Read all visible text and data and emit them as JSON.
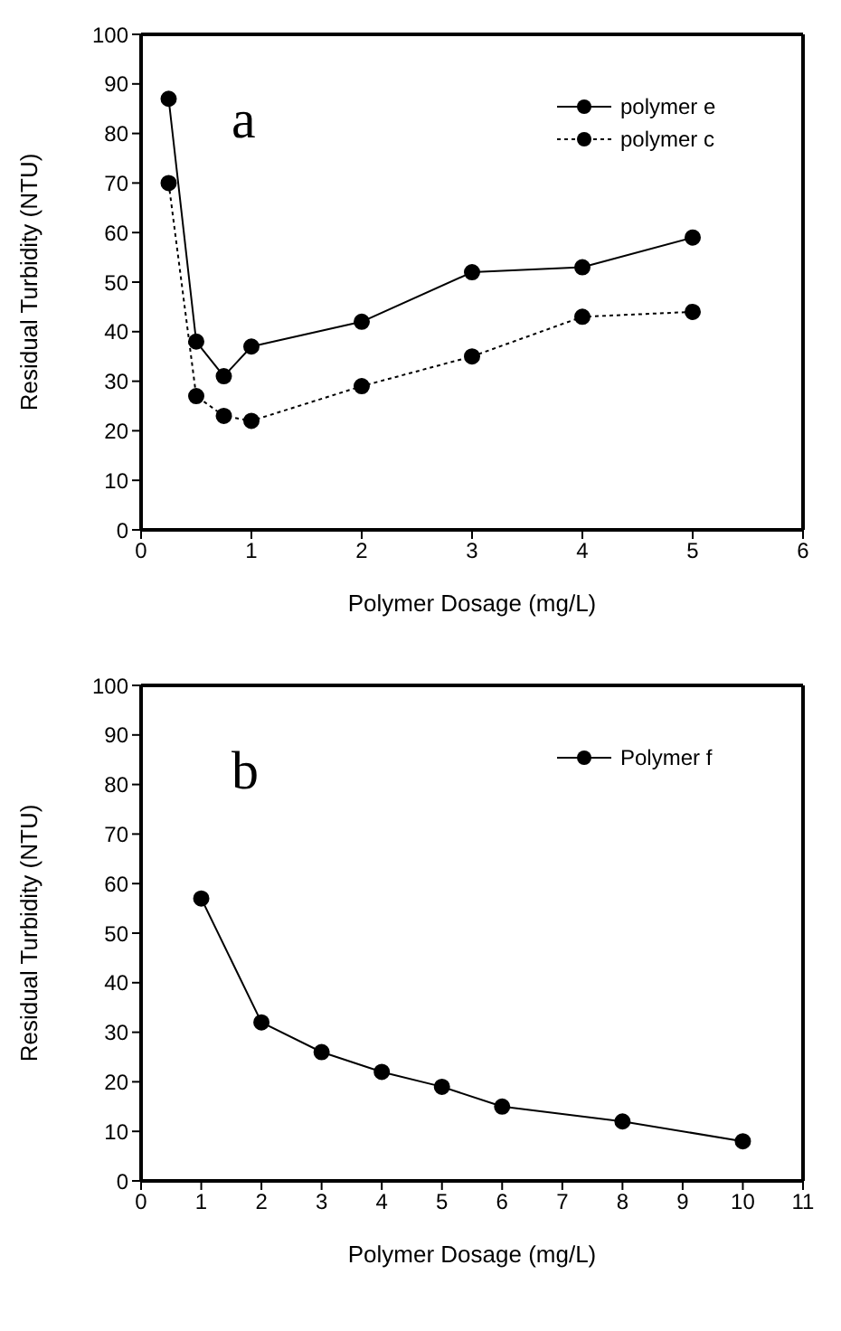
{
  "chart_data": [
    {
      "type": "line",
      "xlabel": "Polymer Dosage (mg/L)",
      "ylabel": "Residual Turbidity (NTU)",
      "annotations": [
        "a"
      ],
      "x": [
        0.25,
        0.5,
        0.75,
        1,
        2,
        3,
        4,
        5
      ],
      "series": [
        {
          "name": "polymer e",
          "color": "#000000",
          "values": [
            87,
            38,
            31,
            37,
            42,
            52,
            53,
            59
          ],
          "line_style": "solid"
        },
        {
          "name": "polymer c",
          "color": "#000000",
          "values": [
            70,
            27,
            23,
            22,
            29,
            35,
            43,
            44
          ],
          "line_style": "dotted"
        }
      ],
      "xlim": [
        0,
        6
      ],
      "xticks": [
        0,
        1,
        2,
        3,
        4,
        5,
        6
      ],
      "ylim": [
        0,
        100
      ],
      "yticks": [
        0,
        10,
        20,
        30,
        40,
        50,
        60,
        70,
        80,
        90,
        100
      ],
      "legend": "top right",
      "marker": "circle"
    },
    {
      "type": "line",
      "xlabel": "Polymer Dosage (mg/L)",
      "ylabel": "Residual Turbidity (NTU)",
      "annotations": [
        "b"
      ],
      "x": [
        1,
        2,
        3,
        4,
        5,
        6,
        8,
        10
      ],
      "series": [
        {
          "name": "Polymer f",
          "color": "#000000",
          "values": [
            57,
            32,
            26,
            22,
            19,
            15,
            12,
            8
          ],
          "line_style": "solid"
        }
      ],
      "xlim": [
        0,
        11
      ],
      "xticks": [
        0,
        1,
        2,
        3,
        4,
        5,
        6,
        7,
        8,
        9,
        10,
        11
      ],
      "ylim": [
        0,
        100
      ],
      "yticks": [
        0,
        10,
        20,
        30,
        40,
        50,
        60,
        70,
        80,
        90,
        100
      ],
      "legend": "top right",
      "marker": "circle"
    }
  ]
}
